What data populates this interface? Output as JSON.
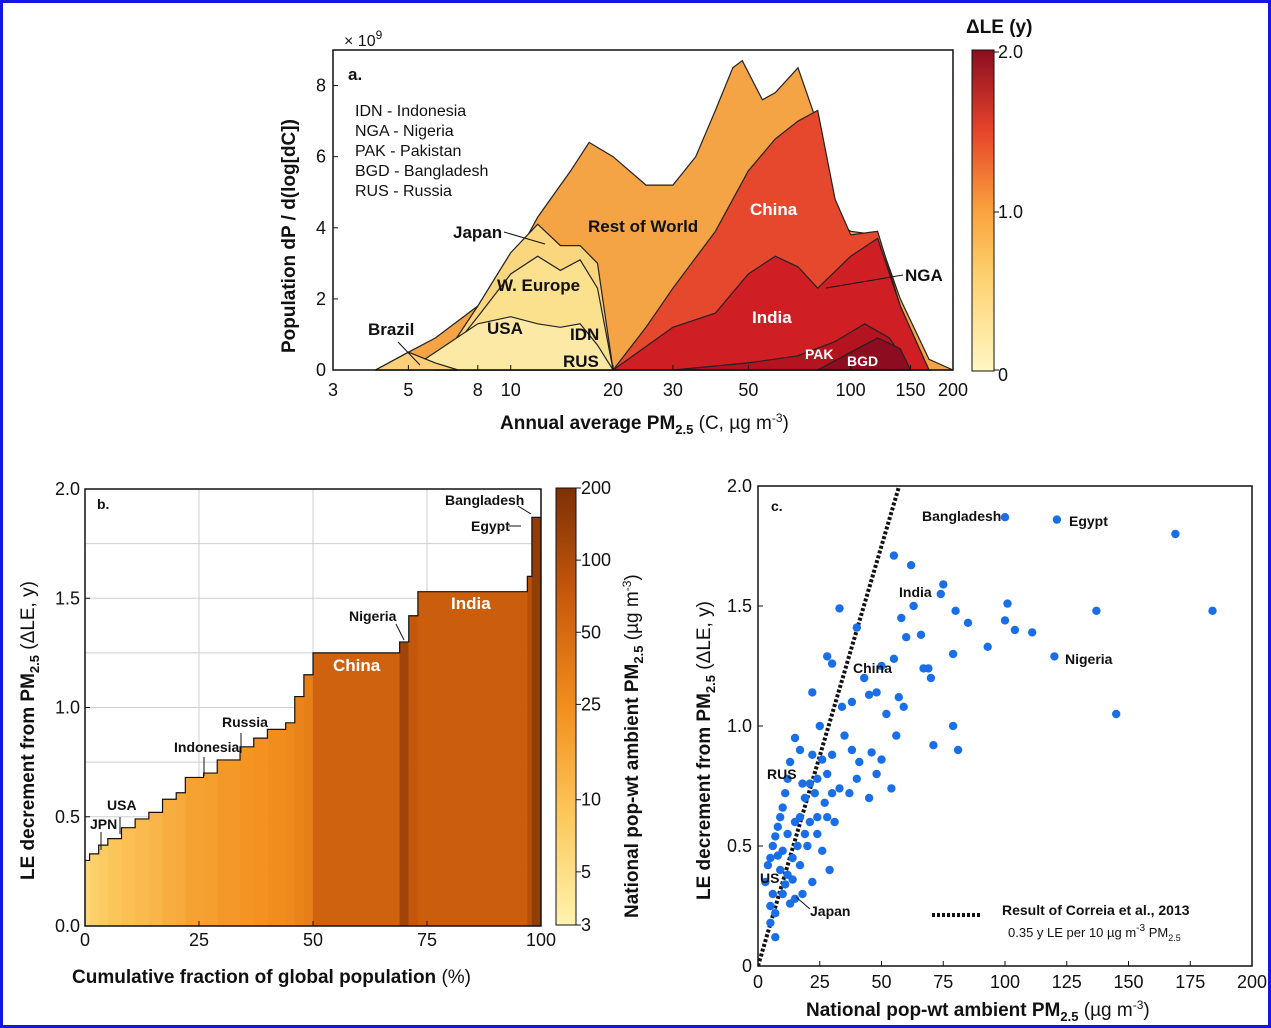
{
  "panel_a": {
    "label": "a.",
    "multiplier": "× 10",
    "multiplier_exp": "9",
    "ylabel": "Population dP / d(log[dC])",
    "xlabel_main": "Annual average PM",
    "xlabel_sub": "2.5",
    "xlabel_rest": " (C, µg m",
    "xlabel_exp": "-3",
    "xlabel_close": ")",
    "legend_lines": [
      "IDN - Indonesia",
      "NGA - Nigeria",
      "PAK - Pakistan",
      "BGD - Bangladesh",
      "RUS - Russia"
    ],
    "region_labels": {
      "japan": "Japan",
      "rest_of_world": "Rest of World",
      "china": "China",
      "w_europe": "W. Europe",
      "usa": "USA",
      "idn": "IDN",
      "rus": "RUS",
      "brazil": "Brazil",
      "india": "India",
      "nga": "NGA",
      "pak": "PAK",
      "bgd": "BGD"
    },
    "colorbar": {
      "title": "ΔLE (y)",
      "ticks": [
        "2.0",
        "1.0",
        "0"
      ]
    }
  },
  "panel_b": {
    "label": "b.",
    "ylabel_main": "LE decrement from PM",
    "ylabel_sub": "2.5",
    "ylabel_rest": " (ΔLE, y)",
    "xlabel_main": "Cumulative fraction of global population",
    "xlabel_rest": " (%)",
    "country_labels": {
      "jpn": "JPN",
      "usa": "USA",
      "indonesia": "Indonesia",
      "russia": "Russia",
      "nigeria": "Nigeria",
      "china": "China",
      "india": "India",
      "bangladesh": "Bangladesh",
      "egypt": "Egypt"
    },
    "colorbar": {
      "title_main": "National pop-wt ambient PM",
      "title_sub": "2.5",
      "title_rest": " (µg m",
      "title_exp": "-3",
      "title_close": ")",
      "ticks": [
        "200",
        "100",
        "50",
        "25",
        "10",
        "5",
        "3"
      ]
    }
  },
  "panel_c": {
    "label": "c.",
    "ylabel_main": "LE decrement from PM",
    "ylabel_sub": "2.5",
    "ylabel_rest": " (ΔLE, y)",
    "xlabel_main": "National pop-wt ambient PM",
    "xlabel_sub": "2.5",
    "xlabel_rest": " (µg m",
    "xlabel_exp": "-3",
    "xlabel_close": ")",
    "point_labels": {
      "bangladesh": "Bangladesh",
      "egypt": "Egypt",
      "india": "India",
      "china": "China",
      "nigeria": "Nigeria",
      "rus": "RUS",
      "us": "US",
      "japan": "Japan"
    },
    "legend_line1": "Result of Correia et al.,  2013",
    "legend_line2_main": "0.35 y LE per 10 µg m",
    "legend_line2_exp": "-3",
    "legend_line2_pm": " PM",
    "legend_line2_sub": "2.5"
  },
  "chart_data": [
    {
      "type": "area",
      "x_scale": "log",
      "xlim": [
        3,
        200
      ],
      "ylim": [
        0,
        9
      ],
      "y_unit": "× 10^9",
      "x_ticks": [
        3,
        5,
        8,
        10,
        20,
        30,
        50,
        100,
        150,
        200
      ],
      "y_ticks": [
        0,
        2,
        4,
        6,
        8
      ],
      "series": [
        {
          "name": "Rest of World",
          "x": [
            4,
            5,
            6,
            8,
            10,
            12,
            15,
            17,
            20,
            25,
            30,
            35,
            40,
            45,
            48,
            55,
            60,
            70,
            80,
            90,
            100,
            120,
            140,
            170,
            200
          ],
          "values": [
            0,
            0.5,
            0.9,
            1.8,
            2.9,
            4.3,
            5.6,
            6.4,
            6.0,
            5.2,
            5.2,
            6.0,
            7.3,
            8.5,
            8.7,
            7.6,
            7.8,
            8.5,
            6.9,
            4.2,
            3.9,
            3.8,
            2.0,
            0.3,
            0
          ]
        },
        {
          "name": "China",
          "x": [
            20,
            25,
            30,
            40,
            50,
            60,
            70,
            80,
            90,
            100,
            120,
            140,
            170
          ],
          "values": [
            0,
            1.2,
            2.3,
            3.9,
            5.6,
            6.5,
            7.0,
            7.3,
            4.8,
            3.8,
            3.9,
            1.8,
            0
          ]
        },
        {
          "name": "India",
          "x": [
            20,
            30,
            40,
            50,
            60,
            70,
            80,
            100,
            120,
            140,
            170
          ],
          "values": [
            0,
            1.2,
            1.6,
            2.7,
            3.2,
            2.9,
            2.3,
            3.2,
            3.7,
            1.8,
            0
          ]
        },
        {
          "name": "PAK",
          "x": [
            30,
            50,
            70,
            90,
            110,
            130,
            150
          ],
          "values": [
            0,
            0.2,
            0.4,
            0.8,
            1.3,
            0.9,
            0
          ]
        },
        {
          "name": "BGD",
          "x": [
            80,
            100,
            120,
            140,
            150
          ],
          "values": [
            0,
            0.5,
            0.9,
            0.6,
            0
          ]
        },
        {
          "name": "Japan",
          "x": [
            6,
            8,
            10,
            12,
            14,
            16,
            18,
            20
          ],
          "values": [
            0,
            1.8,
            3.3,
            4.1,
            3.5,
            3.5,
            3.0,
            0
          ]
        },
        {
          "name": "W. Europe",
          "x": [
            6,
            8,
            10,
            12,
            14,
            16,
            18,
            20
          ],
          "values": [
            0,
            1.5,
            2.7,
            3.2,
            2.8,
            3.1,
            2.3,
            0
          ]
        },
        {
          "name": "USA",
          "x": [
            5,
            6,
            8,
            10,
            12,
            14,
            16,
            18,
            20
          ],
          "values": [
            0,
            0.5,
            1.3,
            1.5,
            1.3,
            1.2,
            1.3,
            0.7,
            0
          ]
        },
        {
          "name": "Brazil",
          "x": [
            4,
            5,
            6,
            7
          ],
          "values": [
            0,
            0.5,
            0.2,
            0
          ]
        }
      ]
    },
    {
      "type": "bar",
      "xlabel": "Cumulative fraction of global population (%)",
      "ylabel": "LE decrement from PM2.5 (ΔLE, y)",
      "xlim": [
        0,
        100
      ],
      "ylim": [
        0,
        2.0
      ],
      "x_ticks": [
        0,
        25,
        50,
        75,
        100
      ],
      "y_ticks": [
        0,
        0.5,
        1.0,
        1.5,
        2.0
      ],
      "steps": [
        {
          "x_end": 1,
          "value": 0.3,
          "pm": 6
        },
        {
          "x_end": 3,
          "value": 0.33,
          "pm": 7
        },
        {
          "x_end": 5,
          "value": 0.37,
          "pm": 8
        },
        {
          "x_end": 8,
          "value": 0.4,
          "pm": 9
        },
        {
          "x_end": 11,
          "value": 0.45,
          "pm": 10
        },
        {
          "x_end": 14,
          "value": 0.49,
          "pm": 11
        },
        {
          "x_end": 17,
          "value": 0.52,
          "pm": 12
        },
        {
          "x_end": 20,
          "value": 0.58,
          "pm": 14
        },
        {
          "x_end": 22,
          "value": 0.61,
          "pm": 15
        },
        {
          "x_end": 26,
          "value": 0.68,
          "pm": 17
        },
        {
          "x_end": 29,
          "value": 0.7,
          "pm": 18
        },
        {
          "x_end": 34,
          "value": 0.76,
          "pm": 20
        },
        {
          "x_end": 37,
          "value": 0.82,
          "pm": 22
        },
        {
          "x_end": 40,
          "value": 0.86,
          "pm": 23
        },
        {
          "x_end": 44,
          "value": 0.9,
          "pm": 25
        },
        {
          "x_end": 46,
          "value": 0.93,
          "pm": 27
        },
        {
          "x_end": 48,
          "value": 1.05,
          "pm": 30
        },
        {
          "x_end": 50,
          "value": 1.15,
          "pm": 33
        },
        {
          "x_end": 69,
          "value": 1.25,
          "pm": 60
        },
        {
          "x_end": 71,
          "value": 1.3,
          "pm": 120
        },
        {
          "x_end": 73,
          "value": 1.42,
          "pm": 75
        },
        {
          "x_end": 97,
          "value": 1.53,
          "pm": 65
        },
        {
          "x_end": 98,
          "value": 1.6,
          "pm": 90
        },
        {
          "x_end": 100,
          "value": 1.87,
          "pm": 150
        }
      ]
    },
    {
      "type": "scatter",
      "xlabel": "National pop-wt ambient PM2.5 (µg m-3)",
      "ylabel": "LE decrement from PM2.5 (ΔLE, y)",
      "xlim": [
        0,
        200
      ],
      "ylim": [
        0,
        2.0
      ],
      "x_ticks": [
        0,
        25,
        50,
        75,
        100,
        125,
        150,
        175,
        200
      ],
      "y_ticks": [
        0,
        0.5,
        1.0,
        1.5,
        2.0
      ],
      "reference_line": {
        "name": "Result of Correia et al.,  2013",
        "slope_per_ugm3": 0.035
      },
      "points": [
        [
          100,
          1.87
        ],
        [
          121,
          1.86
        ],
        [
          169,
          1.8
        ],
        [
          184,
          1.48
        ],
        [
          145,
          1.05
        ],
        [
          120,
          1.29
        ],
        [
          137,
          1.48
        ],
        [
          101,
          1.51
        ],
        [
          104,
          1.4
        ],
        [
          111,
          1.39
        ],
        [
          93,
          1.33
        ],
        [
          100,
          1.44
        ],
        [
          85,
          1.43
        ],
        [
          80,
          1.48
        ],
        [
          75,
          1.59
        ],
        [
          74,
          1.55
        ],
        [
          63,
          1.5
        ],
        [
          58,
          1.45
        ],
        [
          55,
          1.71
        ],
        [
          62,
          1.67
        ],
        [
          66,
          1.38
        ],
        [
          60,
          1.37
        ],
        [
          55,
          1.28
        ],
        [
          50,
          1.25
        ],
        [
          48,
          1.14
        ],
        [
          40,
          1.41
        ],
        [
          43,
          1.2
        ],
        [
          33,
          1.49
        ],
        [
          28,
          1.29
        ],
        [
          30,
          1.26
        ],
        [
          22,
          1.14
        ],
        [
          25,
          1.0
        ],
        [
          34,
          1.08
        ],
        [
          38,
          1.1
        ],
        [
          45,
          1.13
        ],
        [
          52,
          1.05
        ],
        [
          57,
          1.12
        ],
        [
          59,
          1.08
        ],
        [
          67,
          1.24
        ],
        [
          69,
          1.24
        ],
        [
          70,
          1.2
        ],
        [
          79,
          1.3
        ],
        [
          79,
          1.0
        ],
        [
          81,
          0.9
        ],
        [
          71,
          0.92
        ],
        [
          56,
          0.96
        ],
        [
          50,
          0.86
        ],
        [
          46,
          0.89
        ],
        [
          48,
          0.8
        ],
        [
          41,
          0.85
        ],
        [
          38,
          0.9
        ],
        [
          35,
          0.96
        ],
        [
          30,
          0.88
        ],
        [
          28,
          0.8
        ],
        [
          24,
          0.78
        ],
        [
          21,
          0.76
        ],
        [
          18,
          0.76
        ],
        [
          17,
          0.9
        ],
        [
          15,
          0.95
        ],
        [
          13,
          0.85
        ],
        [
          12,
          0.78
        ],
        [
          11,
          0.72
        ],
        [
          10,
          0.66
        ],
        [
          9,
          0.62
        ],
        [
          8,
          0.58
        ],
        [
          7,
          0.54
        ],
        [
          6,
          0.5
        ],
        [
          5,
          0.45
        ],
        [
          4,
          0.42
        ],
        [
          3,
          0.35
        ],
        [
          6,
          0.3
        ],
        [
          7,
          0.22
        ],
        [
          5,
          0.25
        ],
        [
          5,
          0.18
        ],
        [
          7,
          0.12
        ],
        [
          10,
          0.3
        ],
        [
          12,
          0.38
        ],
        [
          14,
          0.45
        ],
        [
          16,
          0.5
        ],
        [
          19,
          0.55
        ],
        [
          21,
          0.6
        ],
        [
          24,
          0.62
        ],
        [
          27,
          0.68
        ],
        [
          30,
          0.72
        ],
        [
          26,
          0.48
        ],
        [
          29,
          0.4
        ],
        [
          22,
          0.35
        ],
        [
          18,
          0.3
        ],
        [
          15,
          0.28
        ],
        [
          13,
          0.26
        ],
        [
          20,
          0.5
        ],
        [
          17,
          0.42
        ],
        [
          14,
          0.36
        ],
        [
          11,
          0.34
        ],
        [
          9,
          0.4
        ],
        [
          8,
          0.46
        ],
        [
          12,
          0.55
        ],
        [
          15,
          0.6
        ],
        [
          19,
          0.7
        ],
        [
          23,
          0.72
        ],
        [
          33,
          0.74
        ],
        [
          37,
          0.72
        ],
        [
          40,
          0.78
        ],
        [
          54,
          0.74
        ],
        [
          45,
          0.7
        ],
        [
          24,
          0.55
        ],
        [
          28,
          0.62
        ],
        [
          17,
          0.62
        ],
        [
          10,
          0.48
        ],
        [
          22,
          0.88
        ],
        [
          26,
          0.86
        ],
        [
          31,
          0.6
        ]
      ]
    }
  ]
}
